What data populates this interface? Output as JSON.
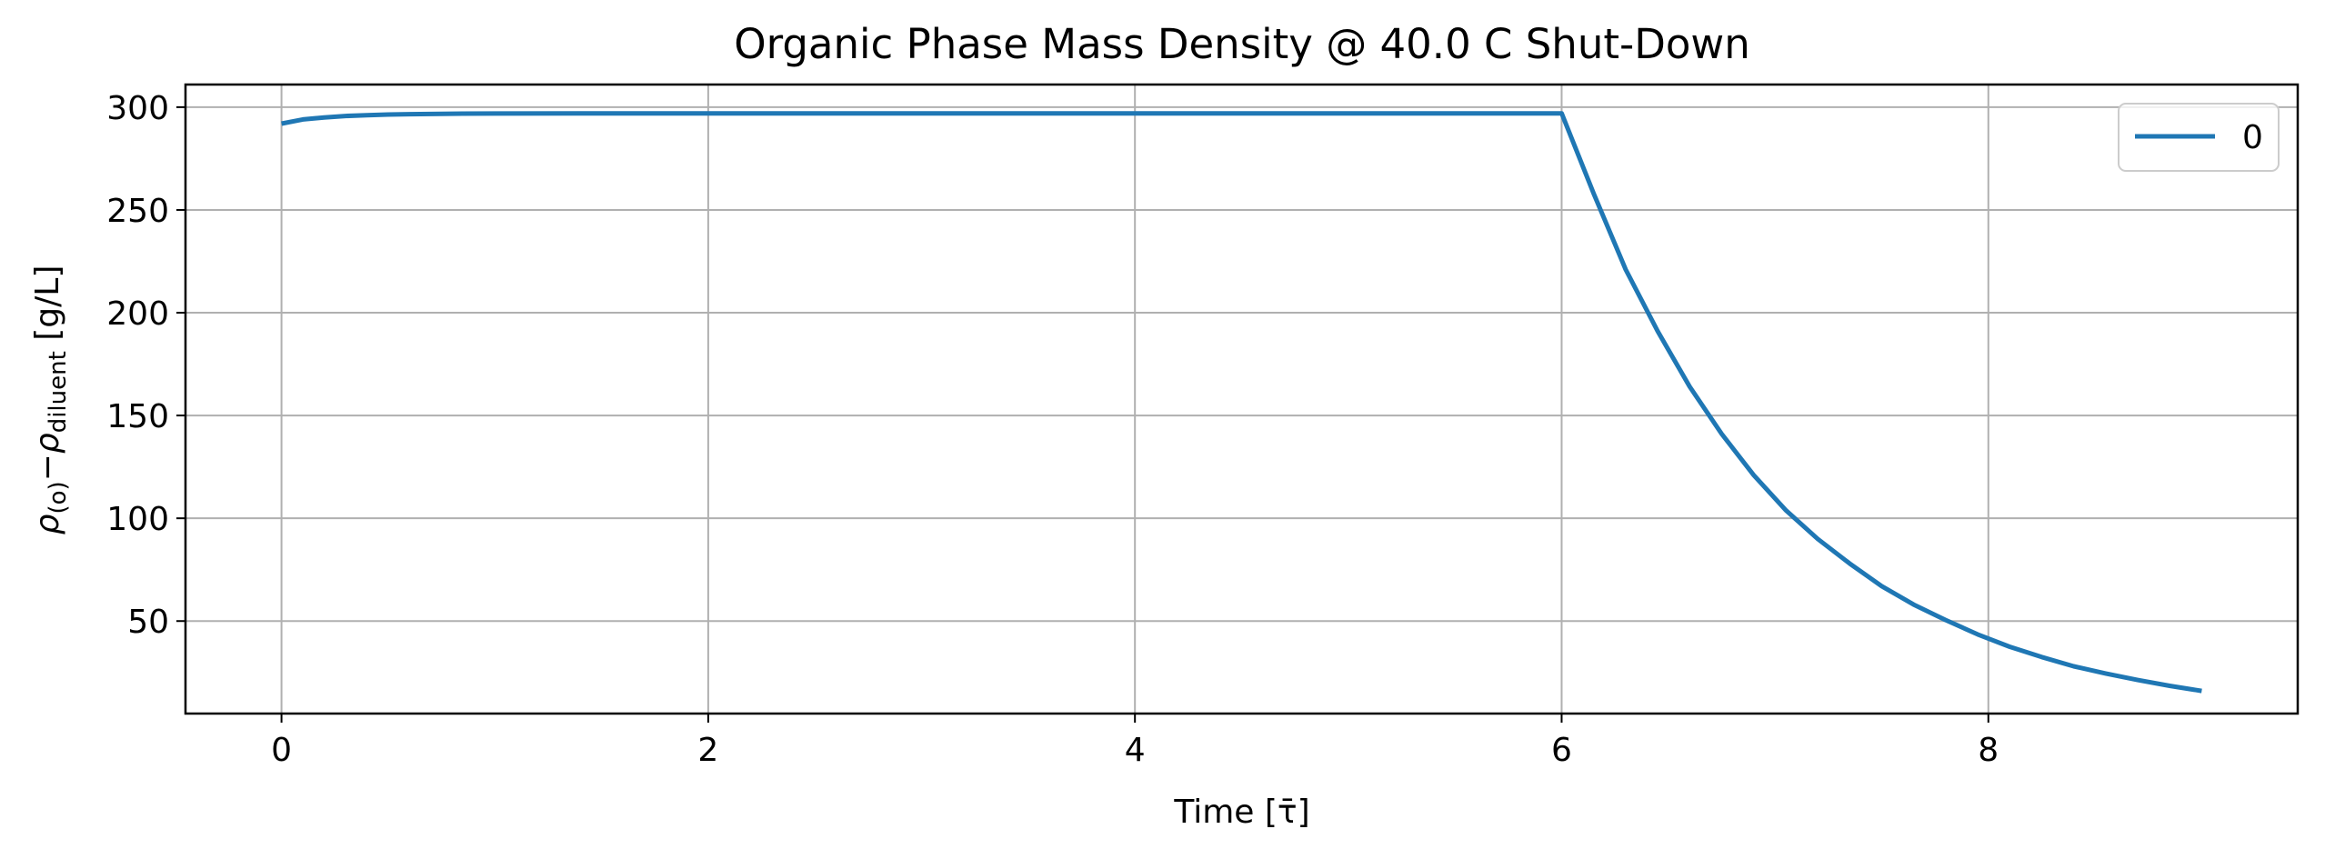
{
  "chart_data": {
    "type": "line",
    "title": "Organic Phase Mass Density @ 40.0 C Shut-Down",
    "xlabel": "Time [τ̄]",
    "ylabel": {
      "rho": "ρ",
      "sub1": "(o)",
      "minus": "−",
      "rho2": "ρ",
      "sub2": "diluent",
      "unit": " [g/L]"
    },
    "xlim": [
      -0.45,
      9.45
    ],
    "ylim": [
      5,
      311
    ],
    "xticks": [
      0,
      2,
      4,
      6,
      8
    ],
    "xtick_labels": [
      "0",
      "2",
      "4",
      "6",
      "8"
    ],
    "yticks": [
      50,
      100,
      150,
      200,
      250,
      300
    ],
    "ytick_labels": [
      "50",
      "100",
      "150",
      "200",
      "250",
      "300"
    ],
    "grid": true,
    "legend_position": "top-right",
    "series": [
      {
        "name": "0",
        "color": "#1f77b4",
        "x": [
          0,
          0.1,
          0.2,
          0.3,
          0.4,
          0.5,
          0.6,
          0.8,
          1.0,
          1.5,
          2,
          3,
          4,
          5,
          6,
          6.15,
          6.3,
          6.45,
          6.6,
          6.75,
          6.9,
          7.05,
          7.2,
          7.35,
          7.5,
          7.65,
          7.8,
          7.95,
          8.1,
          8.25,
          8.4,
          8.55,
          8.7,
          8.85,
          9.0
        ],
        "y": [
          292,
          294,
          295,
          295.7,
          296.1,
          296.4,
          296.6,
          296.8,
          296.9,
          297,
          297,
          297,
          297,
          297,
          297,
          258,
          221,
          191,
          164,
          141,
          121,
          104,
          90,
          78,
          67,
          58,
          50.5,
          43.5,
          37.5,
          32.5,
          28,
          24.5,
          21.3,
          18.5,
          16
        ]
      }
    ]
  }
}
